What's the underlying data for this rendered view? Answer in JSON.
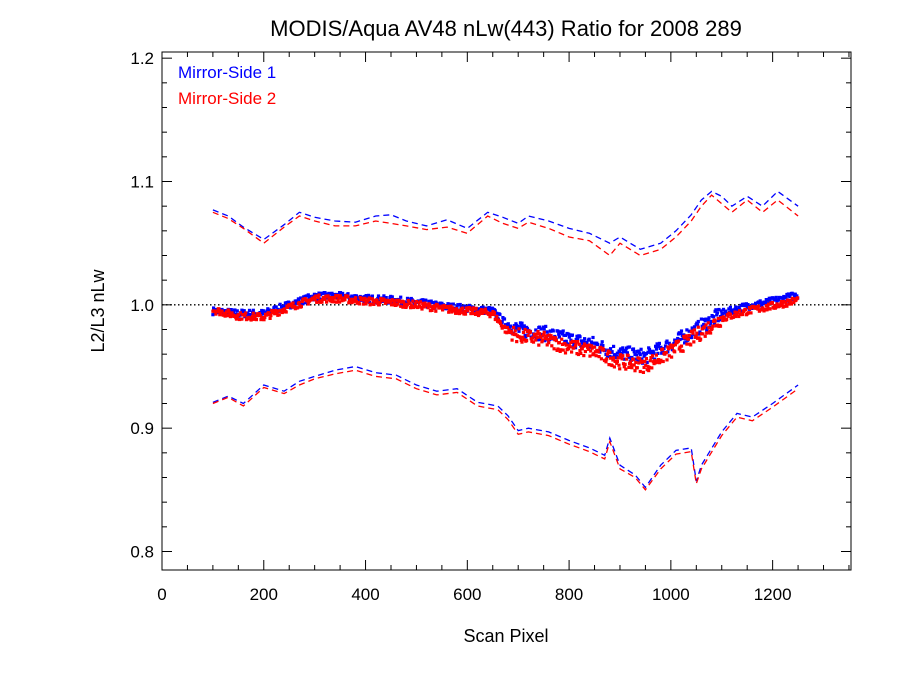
{
  "chart_data": {
    "type": "scatter",
    "title": "MODIS/Aqua AV48 nLw(443) Ratio for 2008 289",
    "xlabel": "Scan Pixel",
    "ylabel": "L2/L3 nLw",
    "xlim": [
      0,
      1354
    ],
    "ylim": [
      0.785,
      1.205
    ],
    "xticks": [
      "0",
      "200",
      "400",
      "600",
      "800",
      "1000",
      "1200"
    ],
    "xtick_values": [
      0,
      200,
      400,
      600,
      800,
      1000,
      1200
    ],
    "yticks": [
      "0.8",
      "0.9",
      "1.0",
      "1.1",
      "1.2"
    ],
    "ytick_values": [
      0.8,
      0.9,
      1.0,
      1.1,
      1.2
    ],
    "legend_position": "top-left",
    "reference_line": 1.0,
    "colors": {
      "ms1": "#0000ff",
      "ms2": "#ff0000",
      "reference": "#000000"
    },
    "series": [
      {
        "name": "Mirror-Side 1",
        "color": "#0000ff",
        "mean": {
          "x": [
            100,
            150,
            200,
            250,
            300,
            350,
            400,
            450,
            500,
            550,
            600,
            650,
            675,
            700,
            750,
            800,
            850,
            880,
            900,
            950,
            1000,
            1050,
            1100,
            1150,
            1200,
            1250
          ],
          "y": [
            0.995,
            0.993,
            0.993,
            1.0,
            1.007,
            1.007,
            1.005,
            1.004,
            1.002,
            0.999,
            0.997,
            0.995,
            0.985,
            0.98,
            0.977,
            0.972,
            0.968,
            0.963,
            0.961,
            0.958,
            0.968,
            0.98,
            0.993,
            0.999,
            1.003,
            1.008
          ]
        },
        "upper": {
          "x": [
            100,
            130,
            160,
            200,
            240,
            270,
            300,
            340,
            380,
            420,
            450,
            480,
            520,
            560,
            600,
            640,
            670,
            700,
            720,
            760,
            800,
            840,
            880,
            900,
            940,
            980,
            1010,
            1040,
            1060,
            1080,
            1100,
            1120,
            1150,
            1180,
            1210,
            1250
          ],
          "y": [
            1.077,
            1.072,
            1.063,
            1.053,
            1.065,
            1.075,
            1.071,
            1.068,
            1.067,
            1.072,
            1.073,
            1.068,
            1.064,
            1.069,
            1.062,
            1.075,
            1.071,
            1.066,
            1.072,
            1.068,
            1.062,
            1.058,
            1.05,
            1.055,
            1.045,
            1.05,
            1.06,
            1.073,
            1.085,
            1.092,
            1.088,
            1.08,
            1.088,
            1.08,
            1.092,
            1.08
          ]
        },
        "lower": {
          "x": [
            100,
            130,
            160,
            200,
            240,
            270,
            300,
            340,
            380,
            420,
            460,
            500,
            540,
            580,
            620,
            660,
            680,
            700,
            720,
            760,
            800,
            840,
            870,
            880,
            900,
            930,
            950,
            980,
            1010,
            1040,
            1050,
            1060,
            1100,
            1130,
            1160,
            1200,
            1250
          ],
          "y": [
            0.921,
            0.926,
            0.92,
            0.935,
            0.93,
            0.938,
            0.942,
            0.947,
            0.95,
            0.945,
            0.943,
            0.935,
            0.93,
            0.932,
            0.921,
            0.918,
            0.91,
            0.898,
            0.9,
            0.897,
            0.89,
            0.884,
            0.878,
            0.892,
            0.87,
            0.862,
            0.852,
            0.87,
            0.882,
            0.884,
            0.857,
            0.87,
            0.897,
            0.912,
            0.909,
            0.92,
            0.935
          ]
        }
      },
      {
        "name": "Mirror-Side 2",
        "color": "#ff0000",
        "mean": {
          "x": [
            100,
            150,
            200,
            250,
            300,
            350,
            400,
            450,
            500,
            550,
            600,
            650,
            675,
            700,
            750,
            800,
            850,
            880,
            900,
            950,
            1000,
            1050,
            1100,
            1150,
            1200,
            1250
          ],
          "y": [
            0.996,
            0.991,
            0.99,
            0.998,
            1.005,
            1.005,
            1.003,
            1.002,
            1.0,
            0.997,
            0.995,
            0.993,
            0.98,
            0.975,
            0.972,
            0.966,
            0.962,
            0.957,
            0.954,
            0.951,
            0.962,
            0.975,
            0.989,
            0.995,
            0.999,
            1.004
          ]
        },
        "upper": {
          "x": [
            100,
            130,
            160,
            200,
            240,
            270,
            300,
            340,
            380,
            420,
            450,
            480,
            520,
            560,
            600,
            640,
            670,
            700,
            720,
            760,
            800,
            840,
            880,
            900,
            940,
            980,
            1010,
            1040,
            1060,
            1080,
            1100,
            1120,
            1150,
            1180,
            1210,
            1250
          ],
          "y": [
            1.075,
            1.07,
            1.062,
            1.05,
            1.063,
            1.072,
            1.068,
            1.064,
            1.064,
            1.068,
            1.066,
            1.064,
            1.061,
            1.063,
            1.058,
            1.072,
            1.066,
            1.062,
            1.067,
            1.062,
            1.055,
            1.052,
            1.04,
            1.05,
            1.04,
            1.045,
            1.055,
            1.068,
            1.08,
            1.089,
            1.082,
            1.075,
            1.085,
            1.075,
            1.085,
            1.072
          ]
        },
        "lower": {
          "x": [
            100,
            130,
            160,
            200,
            240,
            270,
            300,
            340,
            380,
            420,
            460,
            500,
            540,
            580,
            620,
            660,
            680,
            700,
            720,
            760,
            800,
            840,
            870,
            880,
            900,
            930,
            950,
            980,
            1010,
            1040,
            1050,
            1060,
            1100,
            1130,
            1160,
            1200,
            1250
          ],
          "y": [
            0.92,
            0.925,
            0.918,
            0.933,
            0.928,
            0.935,
            0.94,
            0.944,
            0.947,
            0.942,
            0.94,
            0.932,
            0.927,
            0.929,
            0.918,
            0.915,
            0.907,
            0.895,
            0.897,
            0.894,
            0.887,
            0.881,
            0.875,
            0.889,
            0.867,
            0.86,
            0.85,
            0.867,
            0.879,
            0.881,
            0.855,
            0.867,
            0.894,
            0.909,
            0.906,
            0.917,
            0.932
          ]
        }
      }
    ]
  }
}
